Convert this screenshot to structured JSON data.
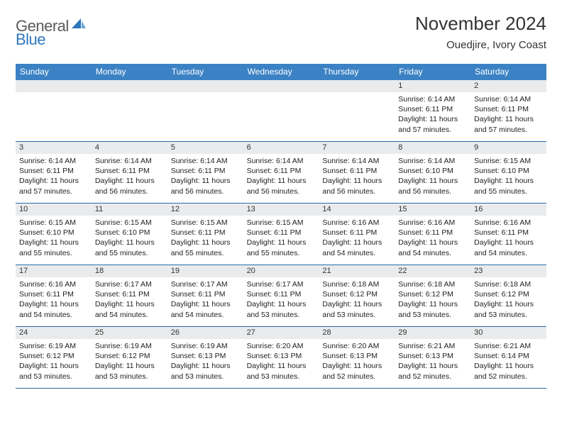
{
  "brand": {
    "word1": "General",
    "word2": "Blue",
    "color_gray": "#5b5b5b",
    "color_blue": "#2e77bb"
  },
  "title": "November 2024",
  "location": "Ouedjire, Ivory Coast",
  "header_bg": "#3b82c4",
  "daynum_bg": "#e9ebec",
  "week_border": "#2e6aa3",
  "weekdays": [
    "Sunday",
    "Monday",
    "Tuesday",
    "Wednesday",
    "Thursday",
    "Friday",
    "Saturday"
  ],
  "weeks": [
    [
      {
        "n": "",
        "lines": []
      },
      {
        "n": "",
        "lines": []
      },
      {
        "n": "",
        "lines": []
      },
      {
        "n": "",
        "lines": []
      },
      {
        "n": "",
        "lines": []
      },
      {
        "n": "1",
        "lines": [
          "Sunrise: 6:14 AM",
          "Sunset: 6:11 PM",
          "Daylight: 11 hours and 57 minutes."
        ]
      },
      {
        "n": "2",
        "lines": [
          "Sunrise: 6:14 AM",
          "Sunset: 6:11 PM",
          "Daylight: 11 hours and 57 minutes."
        ]
      }
    ],
    [
      {
        "n": "3",
        "lines": [
          "Sunrise: 6:14 AM",
          "Sunset: 6:11 PM",
          "Daylight: 11 hours and 57 minutes."
        ]
      },
      {
        "n": "4",
        "lines": [
          "Sunrise: 6:14 AM",
          "Sunset: 6:11 PM",
          "Daylight: 11 hours and 56 minutes."
        ]
      },
      {
        "n": "5",
        "lines": [
          "Sunrise: 6:14 AM",
          "Sunset: 6:11 PM",
          "Daylight: 11 hours and 56 minutes."
        ]
      },
      {
        "n": "6",
        "lines": [
          "Sunrise: 6:14 AM",
          "Sunset: 6:11 PM",
          "Daylight: 11 hours and 56 minutes."
        ]
      },
      {
        "n": "7",
        "lines": [
          "Sunrise: 6:14 AM",
          "Sunset: 6:11 PM",
          "Daylight: 11 hours and 56 minutes."
        ]
      },
      {
        "n": "8",
        "lines": [
          "Sunrise: 6:14 AM",
          "Sunset: 6:10 PM",
          "Daylight: 11 hours and 56 minutes."
        ]
      },
      {
        "n": "9",
        "lines": [
          "Sunrise: 6:15 AM",
          "Sunset: 6:10 PM",
          "Daylight: 11 hours and 55 minutes."
        ]
      }
    ],
    [
      {
        "n": "10",
        "lines": [
          "Sunrise: 6:15 AM",
          "Sunset: 6:10 PM",
          "Daylight: 11 hours and 55 minutes."
        ]
      },
      {
        "n": "11",
        "lines": [
          "Sunrise: 6:15 AM",
          "Sunset: 6:10 PM",
          "Daylight: 11 hours and 55 minutes."
        ]
      },
      {
        "n": "12",
        "lines": [
          "Sunrise: 6:15 AM",
          "Sunset: 6:11 PM",
          "Daylight: 11 hours and 55 minutes."
        ]
      },
      {
        "n": "13",
        "lines": [
          "Sunrise: 6:15 AM",
          "Sunset: 6:11 PM",
          "Daylight: 11 hours and 55 minutes."
        ]
      },
      {
        "n": "14",
        "lines": [
          "Sunrise: 6:16 AM",
          "Sunset: 6:11 PM",
          "Daylight: 11 hours and 54 minutes."
        ]
      },
      {
        "n": "15",
        "lines": [
          "Sunrise: 6:16 AM",
          "Sunset: 6:11 PM",
          "Daylight: 11 hours and 54 minutes."
        ]
      },
      {
        "n": "16",
        "lines": [
          "Sunrise: 6:16 AM",
          "Sunset: 6:11 PM",
          "Daylight: 11 hours and 54 minutes."
        ]
      }
    ],
    [
      {
        "n": "17",
        "lines": [
          "Sunrise: 6:16 AM",
          "Sunset: 6:11 PM",
          "Daylight: 11 hours and 54 minutes."
        ]
      },
      {
        "n": "18",
        "lines": [
          "Sunrise: 6:17 AM",
          "Sunset: 6:11 PM",
          "Daylight: 11 hours and 54 minutes."
        ]
      },
      {
        "n": "19",
        "lines": [
          "Sunrise: 6:17 AM",
          "Sunset: 6:11 PM",
          "Daylight: 11 hours and 54 minutes."
        ]
      },
      {
        "n": "20",
        "lines": [
          "Sunrise: 6:17 AM",
          "Sunset: 6:11 PM",
          "Daylight: 11 hours and 53 minutes."
        ]
      },
      {
        "n": "21",
        "lines": [
          "Sunrise: 6:18 AM",
          "Sunset: 6:12 PM",
          "Daylight: 11 hours and 53 minutes."
        ]
      },
      {
        "n": "22",
        "lines": [
          "Sunrise: 6:18 AM",
          "Sunset: 6:12 PM",
          "Daylight: 11 hours and 53 minutes."
        ]
      },
      {
        "n": "23",
        "lines": [
          "Sunrise: 6:18 AM",
          "Sunset: 6:12 PM",
          "Daylight: 11 hours and 53 minutes."
        ]
      }
    ],
    [
      {
        "n": "24",
        "lines": [
          "Sunrise: 6:19 AM",
          "Sunset: 6:12 PM",
          "Daylight: 11 hours and 53 minutes."
        ]
      },
      {
        "n": "25",
        "lines": [
          "Sunrise: 6:19 AM",
          "Sunset: 6:12 PM",
          "Daylight: 11 hours and 53 minutes."
        ]
      },
      {
        "n": "26",
        "lines": [
          "Sunrise: 6:19 AM",
          "Sunset: 6:13 PM",
          "Daylight: 11 hours and 53 minutes."
        ]
      },
      {
        "n": "27",
        "lines": [
          "Sunrise: 6:20 AM",
          "Sunset: 6:13 PM",
          "Daylight: 11 hours and 53 minutes."
        ]
      },
      {
        "n": "28",
        "lines": [
          "Sunrise: 6:20 AM",
          "Sunset: 6:13 PM",
          "Daylight: 11 hours and 52 minutes."
        ]
      },
      {
        "n": "29",
        "lines": [
          "Sunrise: 6:21 AM",
          "Sunset: 6:13 PM",
          "Daylight: 11 hours and 52 minutes."
        ]
      },
      {
        "n": "30",
        "lines": [
          "Sunrise: 6:21 AM",
          "Sunset: 6:14 PM",
          "Daylight: 11 hours and 52 minutes."
        ]
      }
    ]
  ]
}
